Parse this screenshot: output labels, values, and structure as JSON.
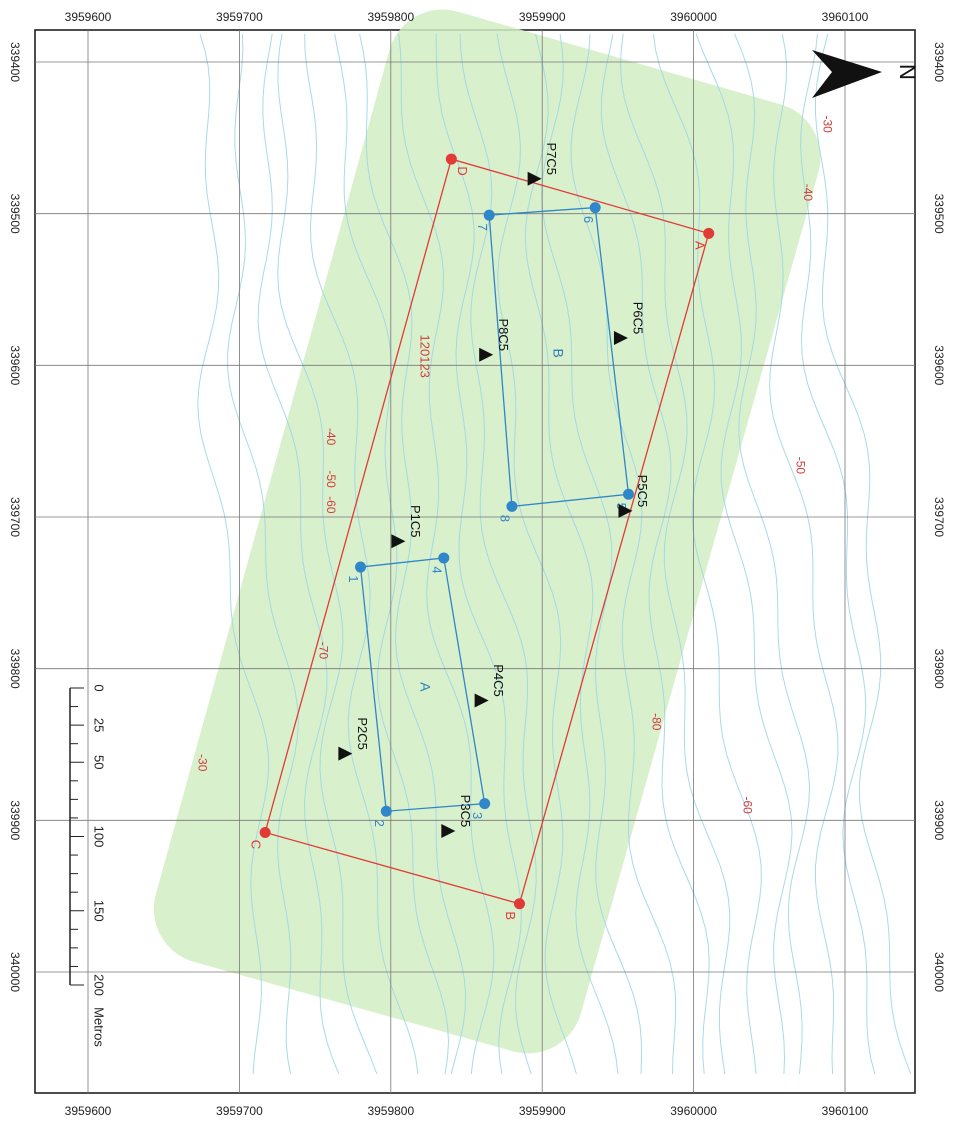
{
  "map": {
    "north_label": "N",
    "x_ticks": [
      "3959600",
      "3959700",
      "3959800",
      "3959900",
      "3960000",
      "3960100"
    ],
    "y_ticks": [
      "339400",
      "339500",
      "339600",
      "339700",
      "339800",
      "339900",
      "340000"
    ],
    "polygon_red_vertices": [
      {
        "label": "A",
        "x": 3960010,
        "y": 339513
      },
      {
        "label": "B",
        "x": 3959885,
        "y": 339955
      },
      {
        "label": "C",
        "x": 3959717,
        "y": 339908
      },
      {
        "label": "D",
        "x": 3959840,
        "y": 339464
      }
    ],
    "zone_b_vertices": [
      {
        "label": "6",
        "x": 3959935,
        "y": 339496
      },
      {
        "label": "5",
        "x": 3959957,
        "y": 339685
      },
      {
        "label": "8",
        "x": 3959880,
        "y": 339693
      },
      {
        "label": "7",
        "x": 3959865,
        "y": 339501
      }
    ],
    "zone_a_vertices": [
      {
        "label": "4",
        "x": 3959835,
        "y": 339727
      },
      {
        "label": "3",
        "x": 3959862,
        "y": 339889
      },
      {
        "label": "2",
        "x": 3959797,
        "y": 339894
      },
      {
        "label": "1",
        "x": 3959780,
        "y": 339733
      }
    ],
    "zone_labels": [
      {
        "text": "A",
        "x": 3959822,
        "y": 339812
      },
      {
        "text": "B",
        "x": 3959910,
        "y": 339592
      }
    ],
    "stations": [
      {
        "label": "P7C5",
        "x": 3959895,
        "y": 339477
      },
      {
        "label": "P6C5",
        "x": 3959952,
        "y": 339582
      },
      {
        "label": "P8C5",
        "x": 3959863,
        "y": 339593
      },
      {
        "label": "P5C5",
        "x": 3959955,
        "y": 339696
      },
      {
        "label": "P1C5",
        "x": 3959805,
        "y": 339716
      },
      {
        "label": "P4C5",
        "x": 3959860,
        "y": 339821
      },
      {
        "label": "P2C5",
        "x": 3959770,
        "y": 339856
      },
      {
        "label": "P3C5",
        "x": 3959838,
        "y": 339907
      }
    ],
    "site_code": {
      "text": "120123",
      "x": 3959822,
      "y": 339594
    },
    "contour_labels": [
      {
        "text": "-30",
        "x": 3960088,
        "y": 339441
      },
      {
        "text": "-40",
        "x": 3960075,
        "y": 339486
      },
      {
        "text": "-40",
        "x": 3959760,
        "y": 339647
      },
      {
        "text": "-50",
        "x": 3959760,
        "y": 339675
      },
      {
        "text": "-60",
        "x": 3959760,
        "y": 339692
      },
      {
        "text": "-50",
        "x": 3960070,
        "y": 339666
      },
      {
        "text": "-70",
        "x": 3959755,
        "y": 339788
      },
      {
        "text": "-80",
        "x": 3959975,
        "y": 339835
      },
      {
        "text": "-30",
        "x": 3959675,
        "y": 339862
      },
      {
        "text": "-60",
        "x": 3960035,
        "y": 339890
      }
    ],
    "scale_bar": {
      "ticks": [
        "0",
        "25",
        "50",
        "100",
        "150",
        "200"
      ],
      "tick_values": [
        0,
        25,
        50,
        100,
        150,
        200
      ],
      "unit": "Metros"
    },
    "colors": {
      "buffer": "#d3eec5",
      "red_polygon": "#e23a36",
      "blue_zones": "#2f86c8",
      "contours": "#9fd6e6",
      "grid": "#777777",
      "labels_red": "#d23b3b",
      "labels_blue": "#2f7fbf"
    }
  }
}
